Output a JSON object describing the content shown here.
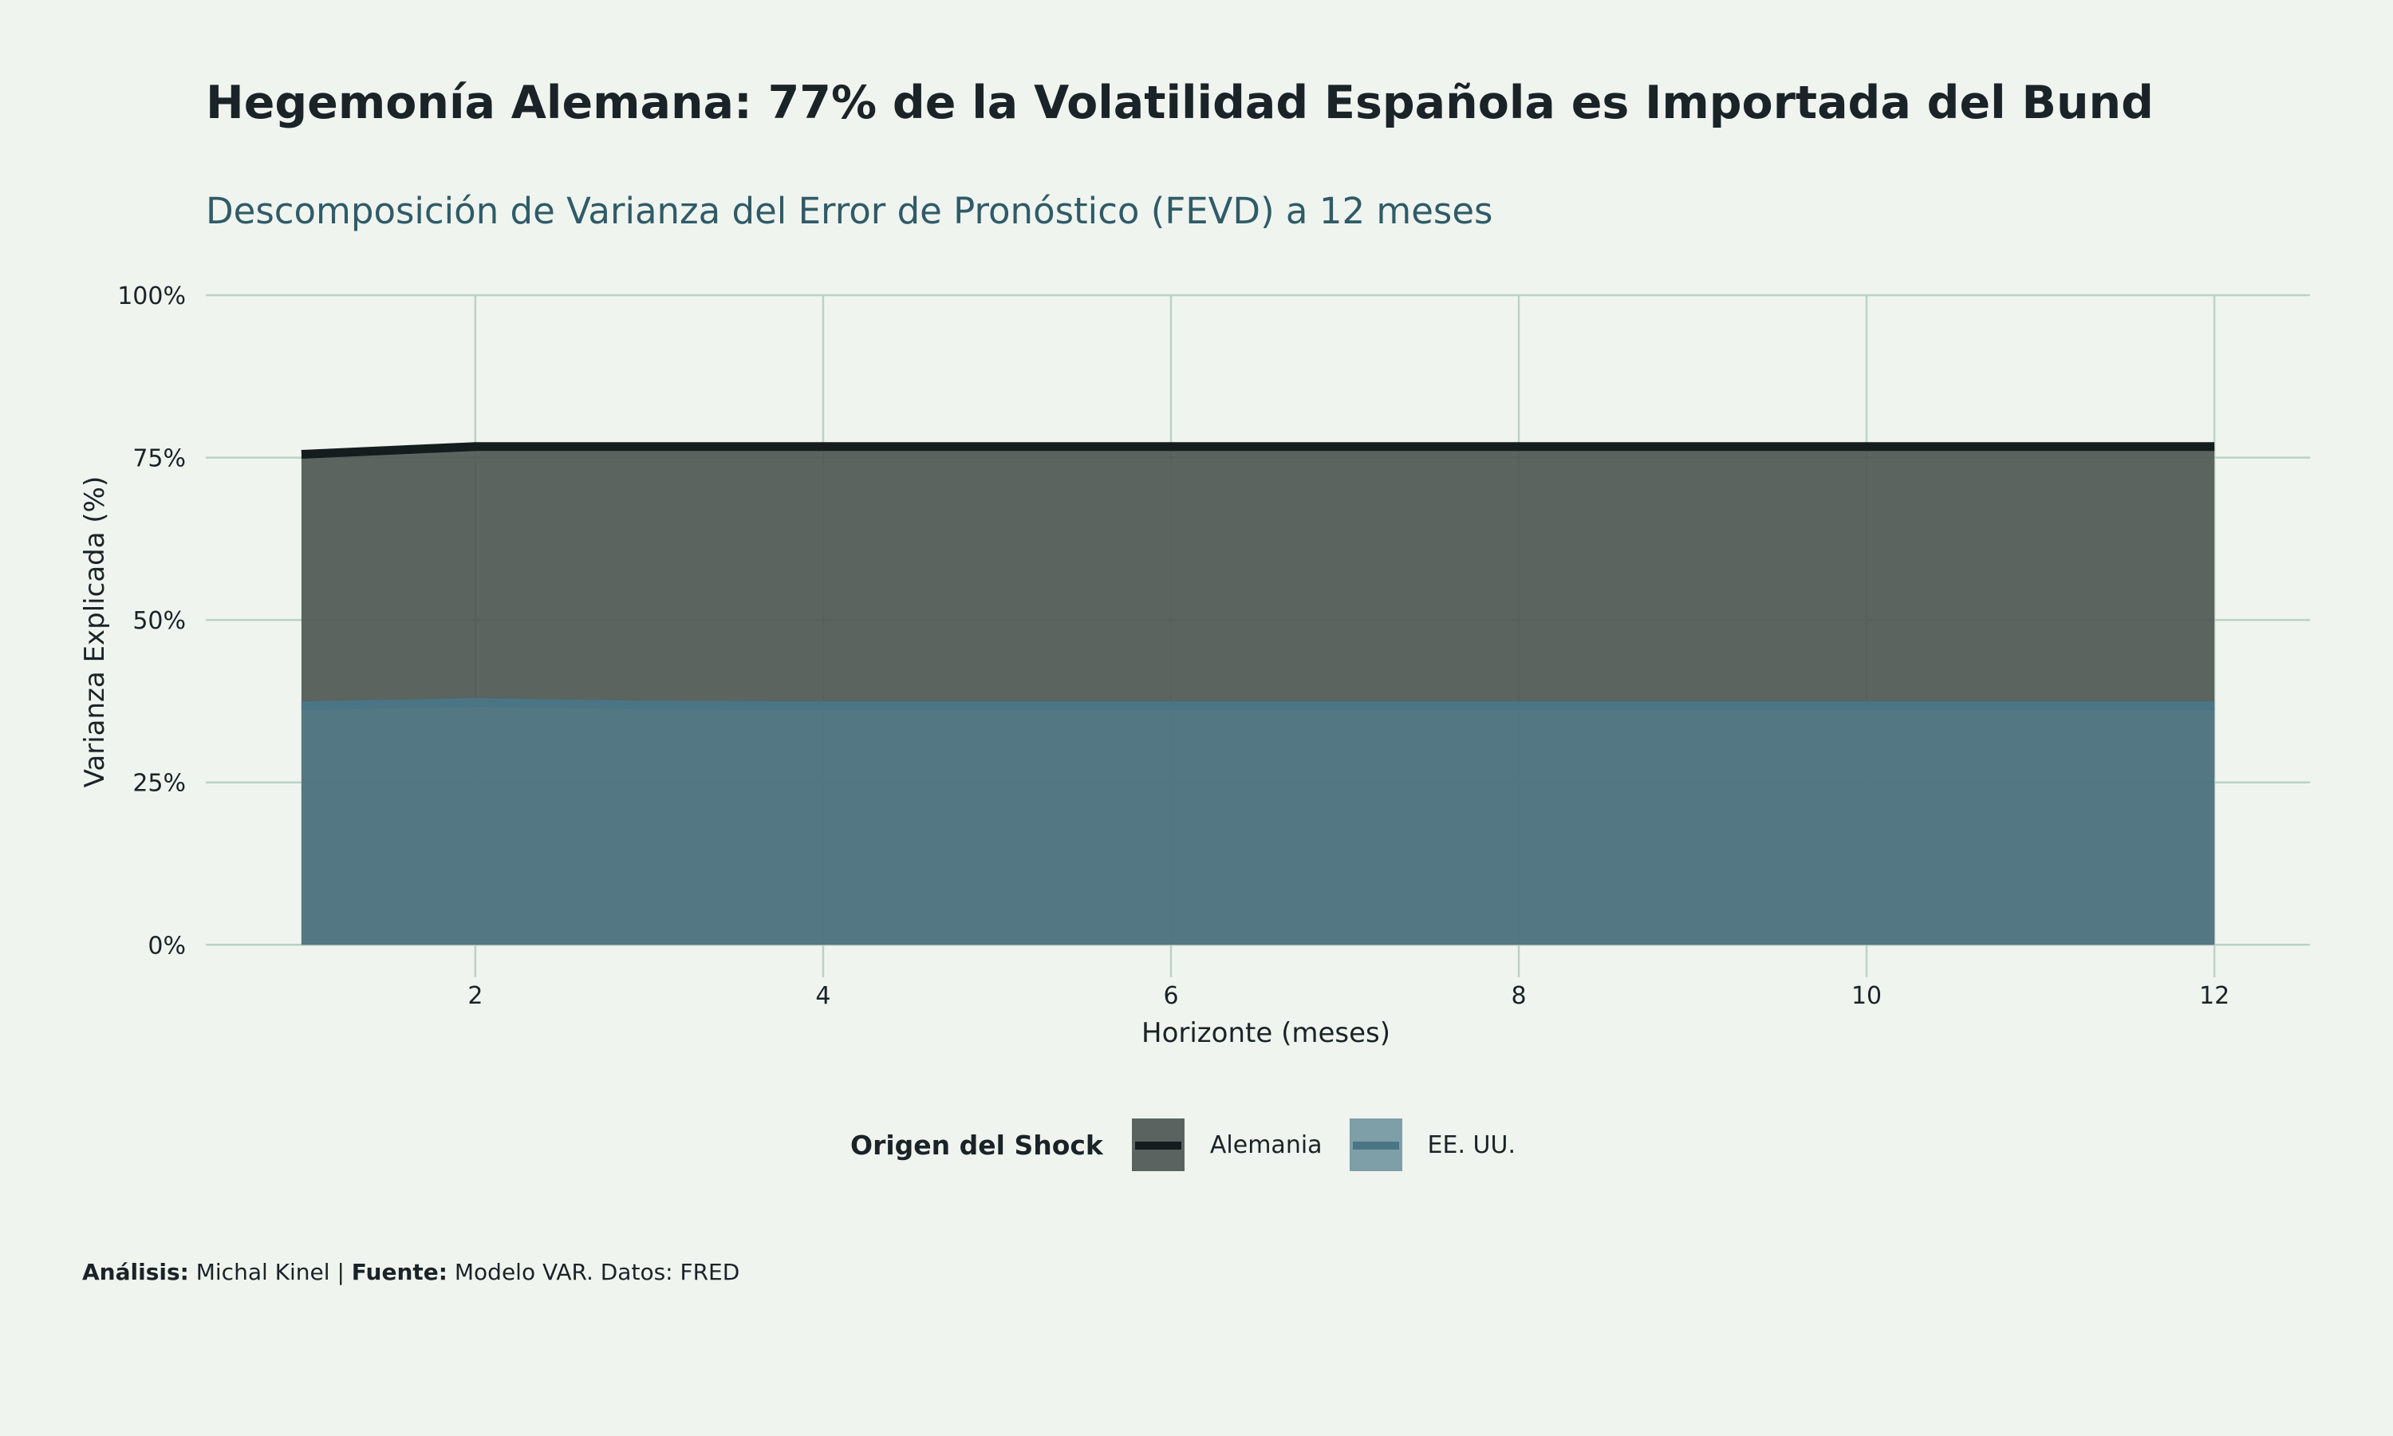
{
  "header": {
    "title": "Hegemonía Alemana: 77% de la Volatilidad Española es Importada del Bund",
    "subtitle": "Descomposición de Varianza del Error de Pronóstico (FEVD) a 12 meses"
  },
  "legend": {
    "title": "Origen del Shock",
    "items": [
      {
        "label": "Alemania",
        "fill": "#5a6360",
        "line": "#141c1e"
      },
      {
        "label": "EE. UU.",
        "fill": "#7e9ea8",
        "line": "#4a7585"
      }
    ]
  },
  "caption": {
    "analysis_label": "Análisis:",
    "analysis_value": "Michal Kinel",
    "separator": "|",
    "source_label": "Fuente:",
    "source_value": "Modelo VAR. Datos: FRED"
  },
  "colors": {
    "background": "#f0f4ef",
    "grid": "#b9d3c6",
    "alemania_fill": "#4e5753",
    "alemania_line": "#141c1e",
    "eeuu_fill": "#527887",
    "eeuu_line": "#4a7585"
  },
  "chart_data": {
    "type": "area",
    "title": "Hegemonía Alemana: 77% de la Volatilidad Española es Importada del Bund",
    "subtitle": "Descomposición de Varianza del Error de Pronóstico (FEVD) a 12 meses",
    "xlabel": "Horizonte (meses)",
    "ylabel": "Varianza Explicada (%)",
    "x": [
      1,
      2,
      3,
      4,
      5,
      6,
      7,
      8,
      9,
      10,
      11,
      12
    ],
    "xlim": [
      0.45,
      12.55
    ],
    "ylim": [
      -0.05,
      1.0
    ],
    "xticks": [
      2,
      4,
      6,
      8,
      10,
      12
    ],
    "xtick_labels": [
      "2",
      "4",
      "6",
      "8",
      "10",
      "12"
    ],
    "yticks": [
      0,
      0.25,
      0.5,
      0.75,
      1.0
    ],
    "ytick_labels": [
      "0%",
      "25%",
      "50%",
      "75%",
      "100%"
    ],
    "grid": true,
    "legend_position": "bottom",
    "series": [
      {
        "name": "Alemania",
        "values": [
          0.755,
          0.767,
          0.767,
          0.767,
          0.767,
          0.767,
          0.767,
          0.767,
          0.767,
          0.767,
          0.767,
          0.767
        ]
      },
      {
        "name": "EE. UU.",
        "values": [
          0.368,
          0.373,
          0.369,
          0.368,
          0.368,
          0.368,
          0.368,
          0.368,
          0.368,
          0.368,
          0.368,
          0.368
        ]
      }
    ]
  }
}
